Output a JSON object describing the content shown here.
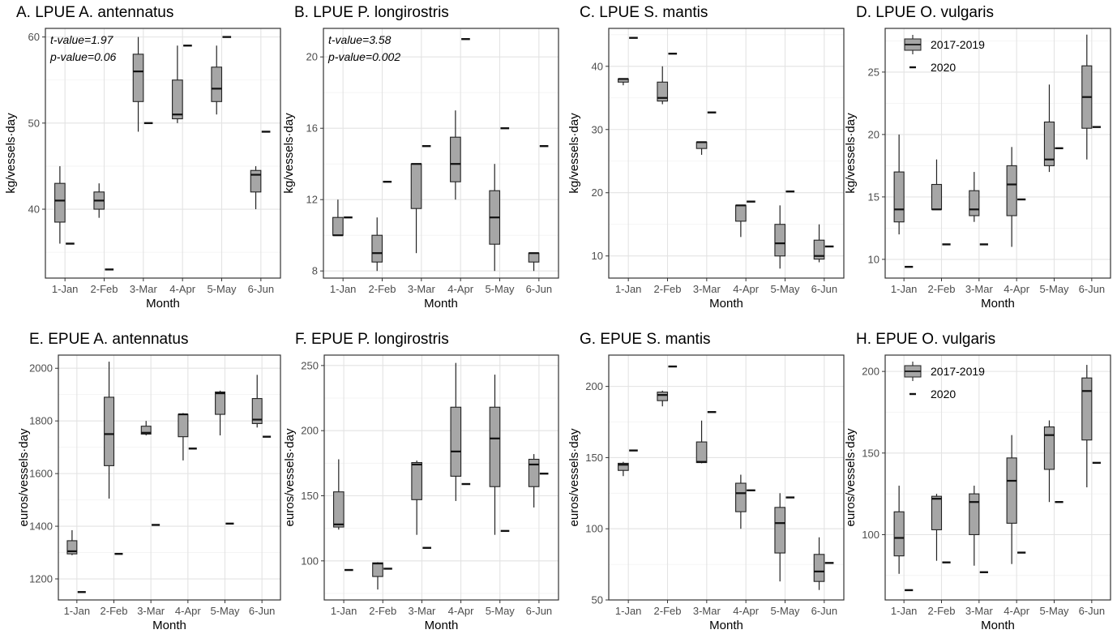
{
  "chart_data": [
    {
      "type": "box",
      "title": "A. LPUE A. antennatus",
      "xlabel": "Month",
      "ylabel": "kg/vessels·day",
      "categories": [
        "1-Jan",
        "2-Feb",
        "3-Mar",
        "4-Apr",
        "5-May",
        "6-Jun"
      ],
      "ylim": [
        32,
        61
      ],
      "yticks": [
        40,
        50,
        60
      ],
      "annotations": [
        "t-value=1.97",
        "p-value=0.06"
      ],
      "legend": null,
      "series": [
        {
          "name": "2017-2019",
          "type": "box",
          "boxes": [
            {
              "min": 36,
              "q1": 38.5,
              "median": 41,
              "q3": 43,
              "max": 45
            },
            {
              "min": 39,
              "q1": 40,
              "median": 41,
              "q3": 42,
              "max": 43
            },
            {
              "min": 49,
              "q1": 52.5,
              "median": 56,
              "q3": 58,
              "max": 60
            },
            {
              "min": 50,
              "q1": 50.5,
              "median": 51,
              "q3": 55,
              "max": 59
            },
            {
              "min": 51,
              "q1": 52.5,
              "median": 54,
              "q3": 56.5,
              "max": 59
            },
            {
              "min": 40,
              "q1": 42,
              "median": 44,
              "q3": 44.5,
              "max": 45
            }
          ]
        },
        {
          "name": "2020",
          "type": "point",
          "values": [
            36,
            33,
            50,
            59,
            60,
            49
          ]
        }
      ]
    },
    {
      "type": "box",
      "title": "B. LPUE P. longirostris",
      "xlabel": "Month",
      "ylabel": "kg/vessels·day",
      "categories": [
        "1-Jan",
        "2-Feb",
        "3-Mar",
        "4-Apr",
        "5-May",
        "6-Jun"
      ],
      "ylim": [
        7.6,
        21.6
      ],
      "yticks": [
        8,
        12,
        16,
        20
      ],
      "annotations": [
        "t-value=3.58",
        "p-value=0.002"
      ],
      "legend": null,
      "series": [
        {
          "name": "2017-2019",
          "type": "box",
          "boxes": [
            {
              "min": 10,
              "q1": 10,
              "median": 10,
              "q3": 11,
              "max": 12
            },
            {
              "min": 8,
              "q1": 8.5,
              "median": 9,
              "q3": 10,
              "max": 11
            },
            {
              "min": 9,
              "q1": 11.5,
              "median": 14,
              "q3": 14,
              "max": 14
            },
            {
              "min": 12,
              "q1": 13,
              "median": 14,
              "q3": 15.5,
              "max": 17
            },
            {
              "min": 8,
              "q1": 9.5,
              "median": 11,
              "q3": 12.5,
              "max": 14
            },
            {
              "min": 8,
              "q1": 8.5,
              "median": 9,
              "q3": 9,
              "max": 9
            }
          ]
        },
        {
          "name": "2020",
          "type": "point",
          "values": [
            11,
            13,
            15,
            21,
            16,
            15
          ]
        }
      ]
    },
    {
      "type": "box",
      "title": "C. LPUE S. mantis",
      "xlabel": "Month",
      "ylabel": "kg/vessels·day",
      "categories": [
        "1-Jan",
        "2-Feb",
        "3-Mar",
        "4-Apr",
        "5-May",
        "6-Jun"
      ],
      "ylim": [
        6.5,
        46
      ],
      "yticks": [
        10,
        20,
        30,
        40
      ],
      "annotations": [],
      "legend": null,
      "series": [
        {
          "name": "2017-2019",
          "type": "box",
          "boxes": [
            {
              "min": 37,
              "q1": 37.5,
              "median": 38,
              "q3": 38,
              "max": 38
            },
            {
              "min": 34,
              "q1": 34.5,
              "median": 35,
              "q3": 37.5,
              "max": 40
            },
            {
              "min": 26,
              "q1": 27,
              "median": 28,
              "q3": 28,
              "max": 28
            },
            {
              "min": 13,
              "q1": 15.5,
              "median": 18,
              "q3": 18,
              "max": 18
            },
            {
              "min": 8,
              "q1": 10,
              "median": 12,
              "q3": 15,
              "max": 18
            },
            {
              "min": 9,
              "q1": 9.5,
              "median": 10,
              "q3": 12.5,
              "max": 15
            }
          ]
        },
        {
          "name": "2020",
          "type": "point",
          "values": [
            44.5,
            42,
            32.7,
            18.6,
            20.2,
            11.5
          ]
        }
      ]
    },
    {
      "type": "box",
      "title": "D. LPUE O. vulgaris",
      "xlabel": "Month",
      "ylabel": "kg/vessels·day",
      "categories": [
        "1-Jan",
        "2-Feb",
        "3-Mar",
        "4-Apr",
        "5-May",
        "6-Jun"
      ],
      "ylim": [
        8.5,
        28.5
      ],
      "yticks": [
        10,
        15,
        20,
        25
      ],
      "annotations": [],
      "legend": {
        "position": "top-left",
        "entries": [
          "2017-2019",
          "2020"
        ]
      },
      "series": [
        {
          "name": "2017-2019",
          "type": "box",
          "boxes": [
            {
              "min": 12,
              "q1": 13,
              "median": 14,
              "q3": 17,
              "max": 20
            },
            {
              "min": 14,
              "q1": 14,
              "median": 14,
              "q3": 16,
              "max": 18
            },
            {
              "min": 13,
              "q1": 13.5,
              "median": 14,
              "q3": 15.5,
              "max": 17
            },
            {
              "min": 11,
              "q1": 13.5,
              "median": 16,
              "q3": 17.5,
              "max": 19
            },
            {
              "min": 17,
              "q1": 17.5,
              "median": 18,
              "q3": 21,
              "max": 24
            },
            {
              "min": 18,
              "q1": 20.5,
              "median": 23,
              "q3": 25.5,
              "max": 28
            }
          ]
        },
        {
          "name": "2020",
          "type": "point",
          "values": [
            9.4,
            11.2,
            11.2,
            14.8,
            18.9,
            20.6
          ]
        }
      ]
    },
    {
      "type": "box",
      "title": "E. EPUE A. antennatus",
      "xlabel": "Month",
      "ylabel": "euros/vessels·day",
      "categories": [
        "1-Jan",
        "2-Feb",
        "3-Mar",
        "4-Apr",
        "5-May",
        "6-Jun"
      ],
      "ylim": [
        1120,
        2050
      ],
      "yticks": [
        1200,
        1400,
        1600,
        1800,
        2000
      ],
      "annotations": [],
      "legend": null,
      "series": [
        {
          "name": "2017-2019",
          "type": "box",
          "boxes": [
            {
              "min": 1290,
              "q1": 1295,
              "median": 1305,
              "q3": 1345,
              "max": 1385
            },
            {
              "min": 1505,
              "q1": 1630,
              "median": 1750,
              "q3": 1890,
              "max": 2025
            },
            {
              "min": 1745,
              "q1": 1750,
              "median": 1755,
              "q3": 1780,
              "max": 1800
            },
            {
              "min": 1650,
              "q1": 1740,
              "median": 1825,
              "q3": 1825,
              "max": 1830
            },
            {
              "min": 1745,
              "q1": 1825,
              "median": 1905,
              "q3": 1910,
              "max": 1915
            },
            {
              "min": 1775,
              "q1": 1790,
              "median": 1805,
              "q3": 1885,
              "max": 1975
            }
          ]
        },
        {
          "name": "2020",
          "type": "point",
          "values": [
            1150,
            1295,
            1405,
            1695,
            1410,
            1740
          ]
        }
      ]
    },
    {
      "type": "box",
      "title": "F. EPUE P. longirostris",
      "xlabel": "Month",
      "ylabel": "euros/vessels·day",
      "categories": [
        "1-Jan",
        "2-Feb",
        "3-Mar",
        "4-Apr",
        "5-May",
        "6-Jun"
      ],
      "ylim": [
        70,
        258
      ],
      "yticks": [
        100,
        150,
        200,
        250
      ],
      "annotations": [],
      "legend": null,
      "series": [
        {
          "name": "2017-2019",
          "type": "box",
          "boxes": [
            {
              "min": 124,
              "q1": 126,
              "median": 128,
              "q3": 153,
              "max": 178
            },
            {
              "min": 78,
              "q1": 88,
              "median": 98,
              "q3": 98.5,
              "max": 99
            },
            {
              "min": 120,
              "q1": 147,
              "median": 174,
              "q3": 175.5,
              "max": 177
            },
            {
              "min": 146,
              "q1": 165,
              "median": 184,
              "q3": 218,
              "max": 252
            },
            {
              "min": 120,
              "q1": 157,
              "median": 194,
              "q3": 218,
              "max": 243
            },
            {
              "min": 141,
              "q1": 157,
              "median": 174,
              "q3": 178,
              "max": 182
            }
          ]
        },
        {
          "name": "2020",
          "type": "point",
          "values": [
            93,
            94,
            110,
            159,
            123,
            167
          ]
        }
      ]
    },
    {
      "type": "box",
      "title": "G. EPUE S. mantis",
      "xlabel": "Month",
      "ylabel": "euros/vessels·day",
      "categories": [
        "1-Jan",
        "2-Feb",
        "3-Mar",
        "4-Apr",
        "5-May",
        "6-Jun"
      ],
      "ylim": [
        50,
        222
      ],
      "yticks": [
        50,
        100,
        150,
        200
      ],
      "annotations": [],
      "legend": null,
      "series": [
        {
          "name": "2017-2019",
          "type": "box",
          "boxes": [
            {
              "min": 137,
              "q1": 141,
              "median": 145,
              "q3": 146,
              "max": 147
            },
            {
              "min": 186,
              "q1": 190,
              "median": 194,
              "q3": 196,
              "max": 197
            },
            {
              "min": 146,
              "q1": 146.5,
              "median": 147,
              "q3": 161,
              "max": 176
            },
            {
              "min": 100,
              "q1": 112,
              "median": 125,
              "q3": 132,
              "max": 138
            },
            {
              "min": 63,
              "q1": 83,
              "median": 104,
              "q3": 115,
              "max": 125
            },
            {
              "min": 57,
              "q1": 63,
              "median": 70,
              "q3": 82,
              "max": 94
            }
          ]
        },
        {
          "name": "2020",
          "type": "point",
          "values": [
            155,
            214,
            182,
            127,
            122,
            76
          ]
        }
      ]
    },
    {
      "type": "box",
      "title": "H. EPUE O. vulgaris",
      "xlabel": "Month",
      "ylabel": "euros/vessels·day",
      "categories": [
        "1-Jan",
        "2-Feb",
        "3-Mar",
        "4-Apr",
        "5-May",
        "6-Jun"
      ],
      "ylim": [
        60,
        210
      ],
      "yticks": [
        100,
        150,
        200
      ],
      "annotations": [],
      "legend": {
        "position": "top-left",
        "entries": [
          "2017-2019",
          "2020"
        ]
      },
      "series": [
        {
          "name": "2017-2019",
          "type": "box",
          "boxes": [
            {
              "min": 76,
              "q1": 87,
              "median": 98,
              "q3": 114,
              "max": 130
            },
            {
              "min": 84,
              "q1": 103,
              "median": 122,
              "q3": 123.5,
              "max": 125
            },
            {
              "min": 81,
              "q1": 100,
              "median": 120,
              "q3": 125,
              "max": 130
            },
            {
              "min": 82,
              "q1": 107,
              "median": 133,
              "q3": 147,
              "max": 161
            },
            {
              "min": 120,
              "q1": 140,
              "median": 161,
              "q3": 166,
              "max": 170
            },
            {
              "min": 129,
              "q1": 158,
              "median": 188,
              "q3": 196,
              "max": 204
            }
          ]
        },
        {
          "name": "2020",
          "type": "point",
          "values": [
            66,
            83,
            77,
            89,
            120,
            144
          ]
        }
      ]
    }
  ]
}
